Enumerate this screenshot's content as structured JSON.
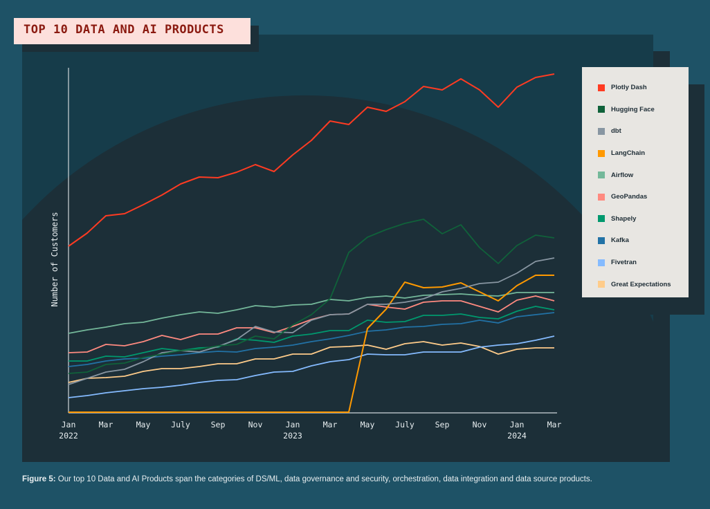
{
  "title": "TOP 10 DATA AND AI PRODUCTS",
  "caption": {
    "label": "Figure 5:",
    "text": " Our top 10 Data and AI Products span the categories of DS/ML, data governance and security, orchestration, data integration and data source products."
  },
  "chart_data": {
    "type": "line",
    "title": "TOP 10 DATA AND AI PRODUCTS",
    "xlabel": "",
    "ylabel": "Number of Customers",
    "ylim": [
      0,
      100
    ],
    "grid": false,
    "legend_position": "right",
    "x": [
      "Jan 2022",
      "Feb 2022",
      "Mar 2022",
      "Apr 2022",
      "May 2022",
      "Jun 2022",
      "Jul 2022",
      "Aug 2022",
      "Sep 2022",
      "Oct 2022",
      "Nov 2022",
      "Dec 2022",
      "Jan 2023",
      "Feb 2023",
      "Mar 2023",
      "Apr 2023",
      "May 2023",
      "Jun 2023",
      "Jul 2023",
      "Aug 2023",
      "Sep 2023",
      "Oct 2023",
      "Nov 2023",
      "Dec 2023",
      "Jan 2024",
      "Feb 2024",
      "Mar 2024"
    ],
    "ticks": [
      {
        "i": 0,
        "label": "Jan",
        "sub": "2022"
      },
      {
        "i": 2,
        "label": "Mar",
        "sub": ""
      },
      {
        "i": 4,
        "label": "May",
        "sub": ""
      },
      {
        "i": 6,
        "label": "July",
        "sub": ""
      },
      {
        "i": 8,
        "label": "Sep",
        "sub": ""
      },
      {
        "i": 10,
        "label": "Nov",
        "sub": ""
      },
      {
        "i": 12,
        "label": "Jan",
        "sub": "2023"
      },
      {
        "i": 14,
        "label": "Mar",
        "sub": ""
      },
      {
        "i": 16,
        "label": "May",
        "sub": ""
      },
      {
        "i": 18,
        "label": "July",
        "sub": ""
      },
      {
        "i": 20,
        "label": "Sep",
        "sub": ""
      },
      {
        "i": 22,
        "label": "Nov",
        "sub": ""
      },
      {
        "i": 24,
        "label": "Jan",
        "sub": "2024"
      },
      {
        "i": 26,
        "label": "Mar",
        "sub": ""
      }
    ],
    "series": [
      {
        "name": "Plotly Dash",
        "color": "#ff3b22",
        "values": [
          48,
          51.8,
          56.8,
          57.4,
          60,
          62.8,
          66,
          68,
          67.8,
          69.4,
          71.6,
          69.6,
          74.4,
          78.6,
          84.2,
          83.2,
          88.2,
          87,
          89.8,
          94.2,
          93.2,
          96.4,
          93.2,
          88.2,
          94,
          96.8,
          97.8
        ]
      },
      {
        "name": "Hugging Face",
        "color": "#10623a",
        "values": [
          11.2,
          11.6,
          13.8,
          14.2,
          15.8,
          16.8,
          17.8,
          18.2,
          19.2,
          19.6,
          22,
          21.2,
          25.2,
          28.2,
          32.8,
          46.2,
          50.6,
          52.8,
          54.6,
          55.8,
          51.6,
          54.2,
          47.6,
          43,
          48.2,
          51.2,
          50.4
        ]
      },
      {
        "name": "dbt",
        "color": "#8896a2",
        "values": [
          8,
          9.8,
          11.6,
          12.4,
          14.6,
          17.2,
          17.8,
          17.4,
          19,
          21,
          24.8,
          23.2,
          23,
          26.6,
          28.2,
          28.4,
          31.2,
          31.2,
          31.8,
          32.8,
          34.8,
          35.8,
          37.2,
          37.6,
          40.2,
          43.6,
          44.6
        ]
      },
      {
        "name": "LangChain",
        "color": "#ff9900",
        "values": [
          0,
          0,
          0,
          0,
          0,
          0,
          0,
          0,
          0,
          0,
          0,
          0,
          0,
          0,
          0,
          0,
          24.2,
          29.8,
          37.6,
          36,
          36.2,
          37.4,
          34.8,
          32.2,
          36.6,
          39.6,
          39.6
        ]
      },
      {
        "name": "Airflow",
        "color": "#74b89a",
        "values": [
          22.8,
          23.8,
          24.6,
          25.6,
          26,
          27.2,
          28.2,
          29,
          28.6,
          29.6,
          30.8,
          30.4,
          31,
          31.2,
          32.6,
          32.2,
          33.2,
          33.6,
          33,
          33.8,
          34,
          34.2,
          33.8,
          33.6,
          34.6,
          34.6,
          34.6
        ]
      },
      {
        "name": "GeoPandas",
        "color": "#ff8a80",
        "values": [
          17.2,
          17.4,
          19.6,
          19.2,
          20.4,
          22.2,
          21,
          22.6,
          22.6,
          24.4,
          24.4,
          23,
          24.8,
          26.8,
          28.2,
          28.4,
          31.2,
          30.4,
          29.8,
          31.8,
          32.2,
          32.2,
          30.6,
          29,
          32.4,
          33.6,
          32.2
        ]
      },
      {
        "name": "Shapely",
        "color": "#00996e",
        "values": [
          14.8,
          14.8,
          16.2,
          16,
          17.2,
          18.4,
          17.8,
          18.6,
          18.8,
          21.2,
          20.8,
          20.2,
          22,
          22.6,
          23.6,
          23.6,
          26.6,
          26,
          26.2,
          28,
          28,
          28.4,
          27.4,
          27,
          29.2,
          30.6,
          29.6
        ]
      },
      {
        "name": "Kafka",
        "color": "#2272a6",
        "values": [
          13.2,
          13.8,
          14.8,
          15.4,
          15.6,
          16.2,
          16.6,
          17.2,
          17.6,
          17.4,
          18.4,
          18.8,
          19.4,
          20.4,
          21.2,
          22.2,
          23.4,
          23.8,
          24.6,
          24.8,
          25.4,
          25.6,
          26.6,
          25.8,
          27.6,
          28.2,
          28.8
        ]
      },
      {
        "name": "Fivetran",
        "color": "#85bbff",
        "values": [
          4.2,
          4.8,
          5.6,
          6.2,
          6.8,
          7.2,
          7.8,
          8.6,
          9.2,
          9.4,
          10.6,
          11.6,
          11.8,
          13.4,
          14.6,
          15.2,
          16.8,
          16.6,
          16.6,
          17.4,
          17.4,
          17.4,
          18.8,
          19.4,
          19.8,
          20.8,
          22
        ]
      },
      {
        "name": "Great Expectations",
        "color": "#ffcc8a",
        "values": [
          8.6,
          9.8,
          10,
          10.4,
          11.8,
          12.6,
          12.6,
          13.2,
          14,
          14,
          15.4,
          15.4,
          16.8,
          16.8,
          18.8,
          19,
          19.4,
          18.2,
          19.8,
          20.4,
          19.4,
          20,
          19,
          16.8,
          18.2,
          18.6,
          18.6
        ]
      }
    ]
  }
}
